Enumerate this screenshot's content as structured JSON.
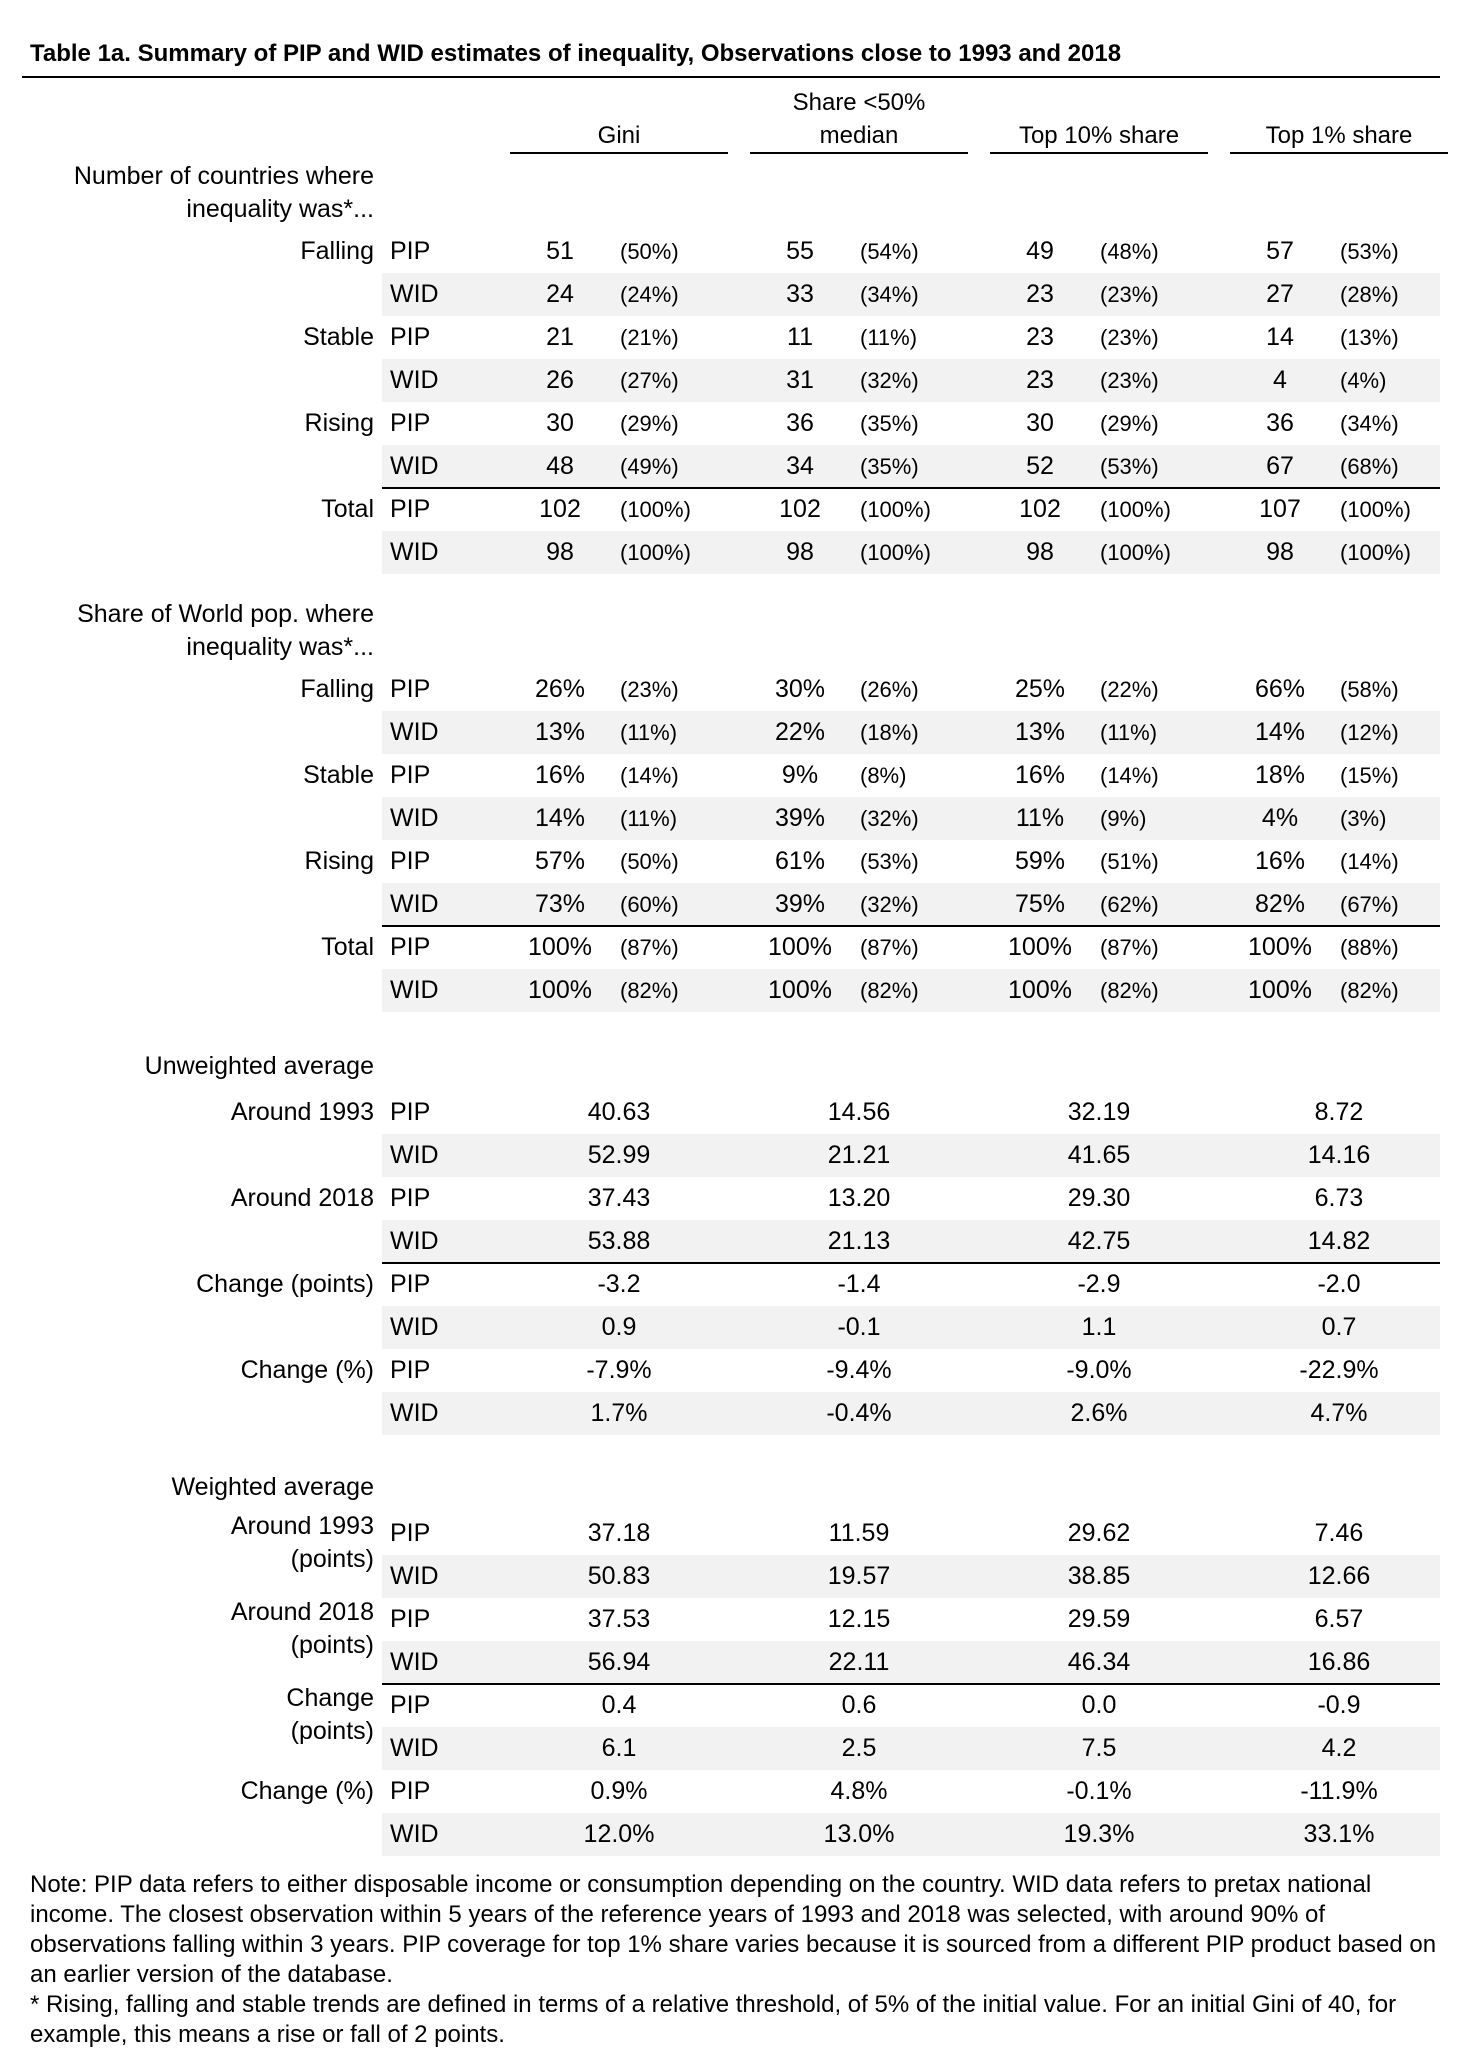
{
  "title": "Table 1a. Summary of PIP and WID estimates of inequality, Observations close to 1993 and 2018",
  "columns": [
    {
      "line1": "",
      "line2": "Gini"
    },
    {
      "line1": "Share <50%",
      "line2": "median"
    },
    {
      "line1": "",
      "line2": "Top 10% share"
    },
    {
      "line1": "",
      "line2": "Top 1% share"
    }
  ],
  "section1": {
    "label": "Number of countries where inequality was*...",
    "rows": [
      {
        "group": "Falling",
        "src": "PIP",
        "cells": [
          [
            "51",
            "(50%)"
          ],
          [
            "55",
            "(54%)"
          ],
          [
            "49",
            "(48%)"
          ],
          [
            "57",
            "(53%)"
          ]
        ]
      },
      {
        "group": "",
        "src": "WID",
        "cells": [
          [
            "24",
            "(24%)"
          ],
          [
            "33",
            "(34%)"
          ],
          [
            "23",
            "(23%)"
          ],
          [
            "27",
            "(28%)"
          ]
        ]
      },
      {
        "group": "Stable",
        "src": "PIP",
        "cells": [
          [
            "21",
            "(21%)"
          ],
          [
            "11",
            "(11%)"
          ],
          [
            "23",
            "(23%)"
          ],
          [
            "14",
            "(13%)"
          ]
        ]
      },
      {
        "group": "",
        "src": "WID",
        "cells": [
          [
            "26",
            "(27%)"
          ],
          [
            "31",
            "(32%)"
          ],
          [
            "23",
            "(23%)"
          ],
          [
            "4",
            "(4%)"
          ]
        ]
      },
      {
        "group": "Rising",
        "src": "PIP",
        "cells": [
          [
            "30",
            "(29%)"
          ],
          [
            "36",
            "(35%)"
          ],
          [
            "30",
            "(29%)"
          ],
          [
            "36",
            "(34%)"
          ]
        ]
      },
      {
        "group": "",
        "src": "WID",
        "cells": [
          [
            "48",
            "(49%)"
          ],
          [
            "34",
            "(35%)"
          ],
          [
            "52",
            "(53%)"
          ],
          [
            "67",
            "(68%)"
          ]
        ]
      },
      {
        "group": "Total",
        "src": "PIP",
        "cells": [
          [
            "102",
            "(100%)"
          ],
          [
            "102",
            "(100%)"
          ],
          [
            "102",
            "(100%)"
          ],
          [
            "107",
            "(100%)"
          ]
        ]
      },
      {
        "group": "",
        "src": "WID",
        "cells": [
          [
            "98",
            "(100%)"
          ],
          [
            "98",
            "(100%)"
          ],
          [
            "98",
            "(100%)"
          ],
          [
            "98",
            "(100%)"
          ]
        ]
      }
    ]
  },
  "section2": {
    "label": "Share of World pop. where inequality was*...",
    "rows": [
      {
        "group": "Falling",
        "src": "PIP",
        "cells": [
          [
            "26%",
            "(23%)"
          ],
          [
            "30%",
            "(26%)"
          ],
          [
            "25%",
            "(22%)"
          ],
          [
            "66%",
            "(58%)"
          ]
        ]
      },
      {
        "group": "",
        "src": "WID",
        "cells": [
          [
            "13%",
            "(11%)"
          ],
          [
            "22%",
            "(18%)"
          ],
          [
            "13%",
            "(11%)"
          ],
          [
            "14%",
            "(12%)"
          ]
        ]
      },
      {
        "group": "Stable",
        "src": "PIP",
        "cells": [
          [
            "16%",
            "(14%)"
          ],
          [
            "9%",
            "(8%)"
          ],
          [
            "16%",
            "(14%)"
          ],
          [
            "18%",
            "(15%)"
          ]
        ]
      },
      {
        "group": "",
        "src": "WID",
        "cells": [
          [
            "14%",
            "(11%)"
          ],
          [
            "39%",
            "(32%)"
          ],
          [
            "11%",
            "(9%)"
          ],
          [
            "4%",
            "(3%)"
          ]
        ]
      },
      {
        "group": "Rising",
        "src": "PIP",
        "cells": [
          [
            "57%",
            "(50%)"
          ],
          [
            "61%",
            "(53%)"
          ],
          [
            "59%",
            "(51%)"
          ],
          [
            "16%",
            "(14%)"
          ]
        ]
      },
      {
        "group": "",
        "src": "WID",
        "cells": [
          [
            "73%",
            "(60%)"
          ],
          [
            "39%",
            "(32%)"
          ],
          [
            "75%",
            "(62%)"
          ],
          [
            "82%",
            "(67%)"
          ]
        ]
      },
      {
        "group": "Total",
        "src": "PIP",
        "cells": [
          [
            "100%",
            "(87%)"
          ],
          [
            "100%",
            "(87%)"
          ],
          [
            "100%",
            "(87%)"
          ],
          [
            "100%",
            "(88%)"
          ]
        ]
      },
      {
        "group": "",
        "src": "WID",
        "cells": [
          [
            "100%",
            "(82%)"
          ],
          [
            "100%",
            "(82%)"
          ],
          [
            "100%",
            "(82%)"
          ],
          [
            "100%",
            "(82%)"
          ]
        ]
      }
    ]
  },
  "section3": {
    "label": "Unweighted average",
    "rows": [
      {
        "group": "Around 1993",
        "src": "PIP",
        "cells": [
          "40.63",
          "14.56",
          "32.19",
          "8.72"
        ]
      },
      {
        "group": "",
        "src": "WID",
        "cells": [
          "52.99",
          "21.21",
          "41.65",
          "14.16"
        ]
      },
      {
        "group": "Around 2018",
        "src": "PIP",
        "cells": [
          "37.43",
          "13.20",
          "29.30",
          "6.73"
        ]
      },
      {
        "group": "",
        "src": "WID",
        "cells": [
          "53.88",
          "21.13",
          "42.75",
          "14.82"
        ]
      },
      {
        "group": "Change (points)",
        "src": "PIP",
        "cells": [
          "-3.2",
          "-1.4",
          "-2.9",
          "-2.0"
        ]
      },
      {
        "group": "",
        "src": "WID",
        "cells": [
          "0.9",
          "-0.1",
          "1.1",
          "0.7"
        ]
      },
      {
        "group": "Change (%)",
        "src": "PIP",
        "cells": [
          "-7.9%",
          "-9.4%",
          "-9.0%",
          "-22.9%"
        ]
      },
      {
        "group": "",
        "src": "WID",
        "cells": [
          "1.7%",
          "-0.4%",
          "2.6%",
          "4.7%"
        ]
      }
    ]
  },
  "section4": {
    "label": "Weighted average",
    "rows": [
      {
        "group": "Around 1993",
        "group2": "(points)",
        "src": "PIP",
        "cells": [
          "37.18",
          "11.59",
          "29.62",
          "7.46"
        ]
      },
      {
        "group": "",
        "src": "WID",
        "cells": [
          "50.83",
          "19.57",
          "38.85",
          "12.66"
        ]
      },
      {
        "group": "Around 2018",
        "group2": "(points)",
        "src": "PIP",
        "cells": [
          "37.53",
          "12.15",
          "29.59",
          "6.57"
        ]
      },
      {
        "group": "",
        "src": "WID",
        "cells": [
          "56.94",
          "22.11",
          "46.34",
          "16.86"
        ]
      },
      {
        "group": "Change",
        "group2": "(points)",
        "src": "PIP",
        "cells": [
          "0.4",
          "0.6",
          "0.0",
          "-0.9"
        ]
      },
      {
        "group": "",
        "src": "WID",
        "cells": [
          "6.1",
          "2.5",
          "7.5",
          "4.2"
        ]
      },
      {
        "group": "Change (%)",
        "src": "PIP",
        "cells": [
          "0.9%",
          "4.8%",
          "-0.1%",
          "-11.9%"
        ]
      },
      {
        "group": "",
        "src": "WID",
        "cells": [
          "12.0%",
          "13.0%",
          "19.3%",
          "33.1%"
        ]
      }
    ]
  },
  "notes": [
    "Note: PIP data refers to either disposable income or consumption depending on the country. WID data refers to pretax national income. The closest observation within 5 years of the reference years of 1993 and 2018 was selected, with around 90% of observations falling within 3 years. PIP coverage for top 1% share varies because it is sourced from a different PIP product based on an earlier version of the database.",
    "* Rising, falling and stable trends are defined in terms of a relative threshold, of 5% of the initial value. For an initial Gini of 40, for example, this means a rise or fall of 2 points."
  ]
}
